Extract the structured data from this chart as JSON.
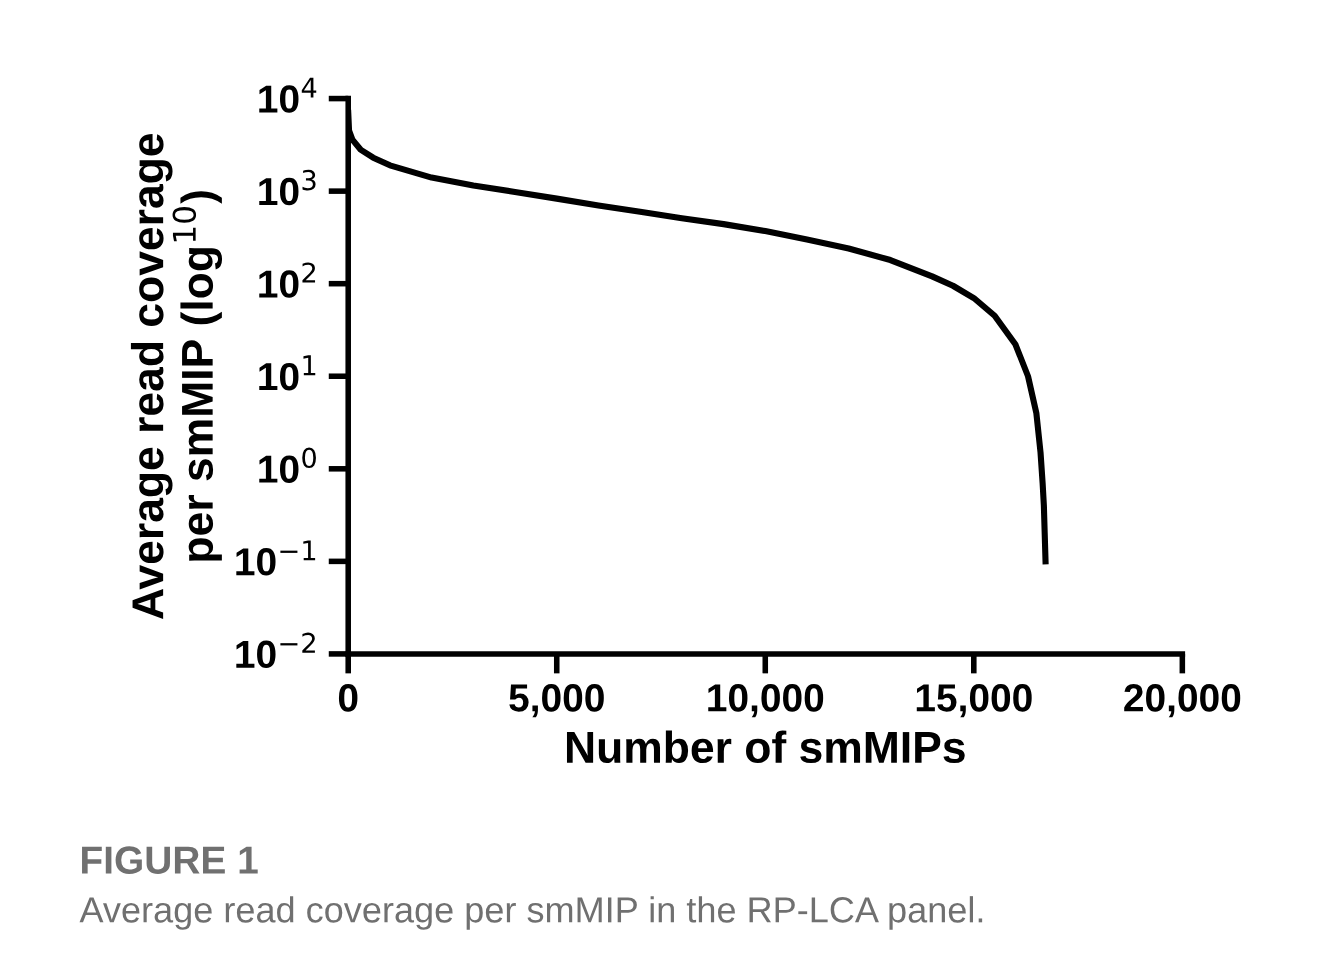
{
  "chart_data": {
    "type": "line",
    "xlabel": "Number of smMIPs",
    "ylabel": "Average read coverage\nper smMIP (log$^{10}$)",
    "annotations": [
      "FIGURE 1",
      "Average read coverage per smMIP in the RP-LCA panel."
    ],
    "log": "y",
    "grid": false,
    "legend": false,
    "marker": "none",
    "line_style": "solid",
    "series": [
      {
        "color": "#000000",
        "x": [
          1,
          20,
          100,
          300,
          600,
          1000,
          2000,
          3000,
          4000,
          5000,
          6000,
          7000,
          8000,
          9000,
          10000,
          11000,
          12000,
          13000,
          14000,
          14500,
          15000,
          15500,
          16000,
          16300,
          16500,
          16600,
          16650,
          16680,
          16700,
          16720
        ],
        "values": [
          7000,
          4500,
          3600,
          2800,
          2300,
          1900,
          1400,
          1150,
          980,
          830,
          700,
          600,
          510,
          440,
          370,
          300,
          240,
          180,
          120,
          95,
          70,
          45,
          22,
          10,
          4,
          1.5,
          0.7,
          0.4,
          0.2,
          0.1
        ]
      }
    ],
    "xlim": [
      0,
      20000
    ],
    "xticks": [
      0,
      {
        "value": 5000,
        "label": "5,000"
      },
      {
        "value": 10000,
        "label": "10,000"
      },
      {
        "value": 15000,
        "label": "15,000"
      },
      {
        "value": 20000,
        "label": "20,000"
      }
    ],
    "ylim": [
      0.01,
      10000
    ],
    "yticks": [
      {
        "value": 0.01,
        "label": "10$^{−2}$"
      },
      {
        "value": 0.1,
        "label": "10$^{−1}$"
      },
      {
        "value": 1,
        "label": "10$^{0}$"
      },
      {
        "value": 10,
        "label": "10$^{1}$"
      },
      {
        "value": 100,
        "label": "10$^{2}$"
      },
      {
        "value": 1000,
        "label": "10$^{3}$"
      },
      {
        "value": 10000,
        "label": "10$^{4}$"
      }
    ]
  }
}
